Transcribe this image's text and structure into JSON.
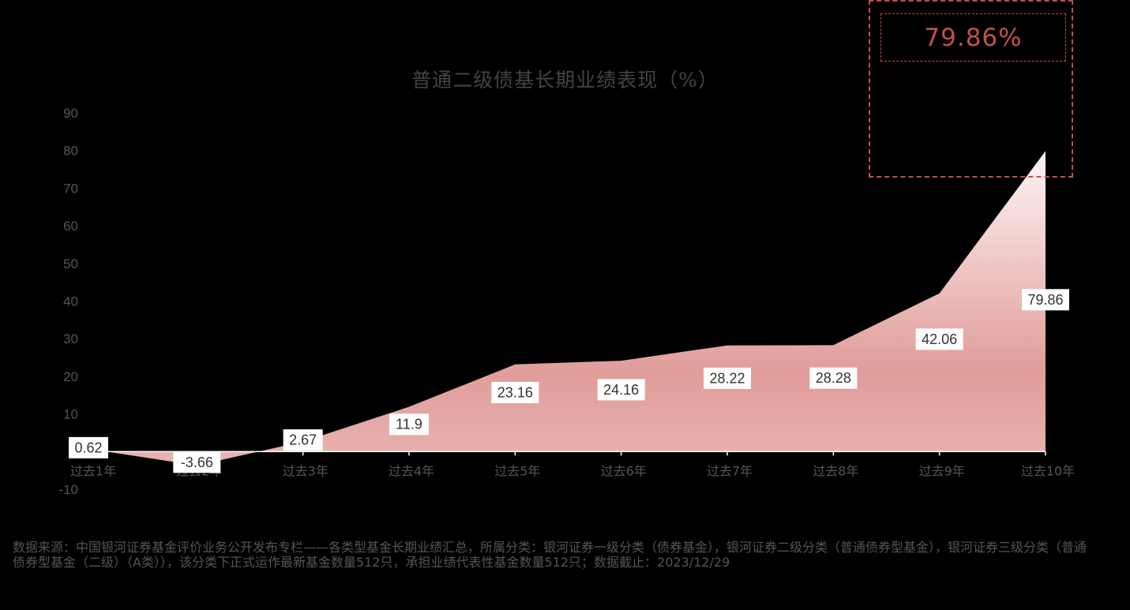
{
  "chart_data": {
    "type": "area",
    "title": "普通二级债基长期业绩表现（%）",
    "categories": [
      "过去1年",
      "过去2年",
      "过去3年",
      "过去4年",
      "过去5年",
      "过去6年",
      "过去7年",
      "过去8年",
      "过去9年",
      "过去10年"
    ],
    "series": [
      {
        "values": [
          0.62,
          -3.66,
          2.67,
          11.9,
          23.16,
          24.16,
          28.22,
          28.28,
          42.06,
          79.86
        ],
        "labels": [
          "0.62",
          "-3.66",
          "2.67",
          "11.9",
          "23.16",
          "24.16",
          "28.22",
          "28.28",
          "42.06",
          "79.86"
        ]
      }
    ],
    "y_ticks": [
      "90",
      "80",
      "70",
      "60",
      "50",
      "40",
      "30",
      "20",
      "10",
      "-10"
    ],
    "ylim": [
      -10,
      90
    ],
    "grid": false,
    "colors": {
      "area_top": "#fdf4f4",
      "area_mid": "#e6aaa8",
      "area_bottom": "#dc9694",
      "axis_text": "#555555",
      "accent": "#c0504d"
    }
  },
  "highlight": {
    "value": "79.86%"
  },
  "source_note": "数据来源：中国银河证券基金评价业务公开发布专栏——各类型基金长期业绩汇总，所属分类：银河证券一级分类（债券基金），银河证券二级分类（普通债券型基金），银河证券三级分类（普通债券型基金（二级）（A类）），该分类下正式运作最新基金数量512只，承担业绩代表性基金数量512只；数据截止：2023/12/29"
}
